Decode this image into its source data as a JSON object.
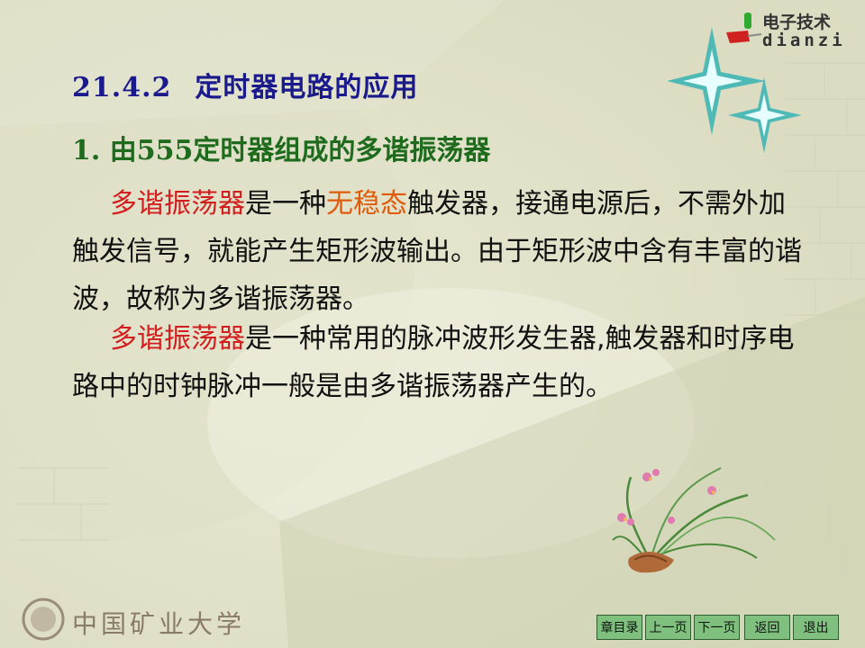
{
  "header": {
    "logo_line1": "电子技术",
    "logo_line2": "dianzi"
  },
  "content": {
    "section_number": "21.4.2",
    "section_title": "定时器电路的应用",
    "subsection": "1. 由555定时器组成的多谐振荡器",
    "para1": {
      "highlight1": "多谐振荡器",
      "text1": "是一种",
      "highlight2": "无稳态",
      "text2": "触发器，接通电源后，不需外加触发信号，就能产生矩形波输出。由于矩形波中含有丰富的谐波，故称为多谐振荡器。"
    },
    "para2": {
      "highlight1": "多谐振荡器",
      "text1": "是一种常用的脉冲波形发生器,触发器和时序电路中的时钟脉冲一般是由多谐振荡器产生的。"
    }
  },
  "footer": {
    "university": "中国矿业大学"
  },
  "nav": {
    "chapter_toc": "章目录",
    "prev_page": "上一页",
    "next_page": "下一页",
    "back": "返回",
    "exit": "退出"
  },
  "colors": {
    "background": "#ecebd8",
    "title": "#1a1a8c",
    "subtitle": "#1e6b1e",
    "highlight_red": "#d21e1e",
    "highlight_orange": "#e05a0a",
    "nav_button": "#7fc07f"
  }
}
